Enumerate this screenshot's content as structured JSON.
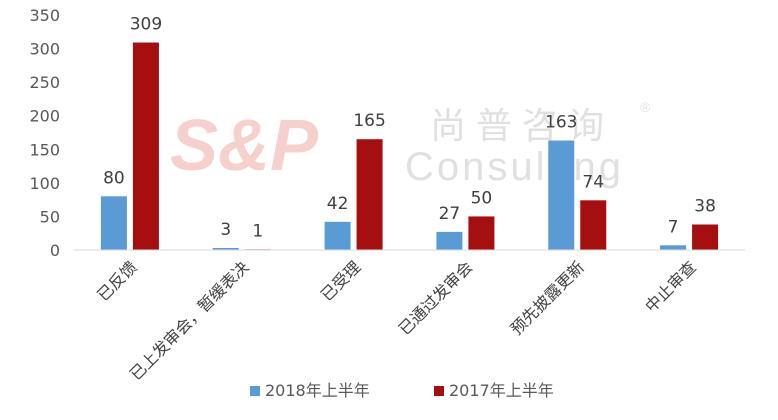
{
  "watermark": {
    "logo": "S&P",
    "brand_cn": "尚普咨询",
    "brand_en": "Consulting",
    "registered": "®"
  },
  "chart_data": {
    "type": "bar",
    "categories": [
      "已反馈",
      "已上发审会，暂缓表决",
      "已受理",
      "已通过发审会",
      "预先披露更新",
      "中止审查"
    ],
    "series": [
      {
        "name": "2018年上半年",
        "color": "#5B9BD5",
        "values": [
          80,
          3,
          42,
          27,
          163,
          7
        ]
      },
      {
        "name": "2017年上半年",
        "color": "#A50F0F",
        "values": [
          309,
          1,
          165,
          50,
          74,
          38
        ]
      }
    ],
    "yticks": [
      0,
      50,
      100,
      150,
      200,
      250,
      300,
      350
    ],
    "ylim": [
      0,
      350
    ],
    "grid": false,
    "legend": "bottom",
    "title": "",
    "xlabel": "",
    "ylabel": ""
  }
}
